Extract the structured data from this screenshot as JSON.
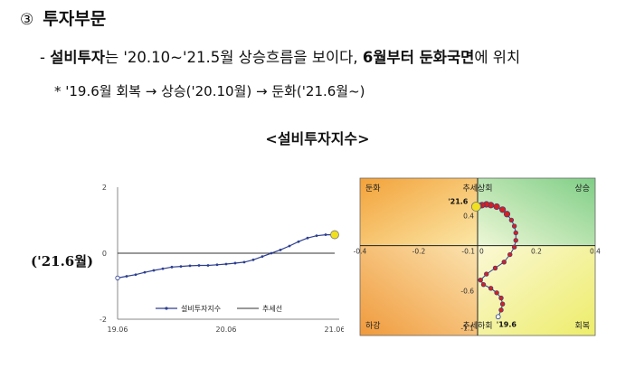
{
  "section": {
    "number": "③",
    "title": "투자부문"
  },
  "bullet1": {
    "dash": "-",
    "t1": "설비투자",
    "t2": "는 '20.10~'21.5월 상승흐름을 보이다, ",
    "t3": "6월부터 둔화국면",
    "t4": "에 위치"
  },
  "bullet2": {
    "text": "* '19.6월 회복 → 상승('20.10월) → 둔화('21.6월~)"
  },
  "figure": {
    "title": "<설비투자지수>",
    "side_label": "('21.6월)"
  },
  "chart_data": [
    {
      "type": "line",
      "x_ticks": [
        "19.06",
        "20.06",
        "21.06"
      ],
      "y_ticks": [
        "2",
        "0",
        "-2"
      ],
      "ylim": [
        -2,
        2
      ],
      "series": [
        {
          "name": "설비투자지수",
          "color": "#2d3f8f",
          "x": [
            0,
            1,
            2,
            3,
            4,
            5,
            6,
            7,
            8,
            9,
            10,
            11,
            12,
            13,
            14,
            15,
            16,
            17,
            18,
            19,
            20,
            21,
            22,
            23,
            24
          ],
          "values": [
            -0.75,
            -0.7,
            -0.65,
            -0.58,
            -0.52,
            -0.47,
            -0.42,
            -0.4,
            -0.38,
            -0.37,
            -0.37,
            -0.35,
            -0.33,
            -0.3,
            -0.27,
            -0.2,
            -0.1,
            0.0,
            0.1,
            0.22,
            0.35,
            0.46,
            0.53,
            0.56,
            0.56
          ]
        },
        {
          "name": "추세선",
          "color": "#333333",
          "x": [
            0,
            24
          ],
          "values": [
            0,
            0
          ]
        }
      ],
      "highlight": {
        "x": 24,
        "value": 0.56,
        "color": "#f0e020"
      }
    },
    {
      "type": "scatter",
      "x_ticks": [
        "-0.4",
        "-0.2",
        "-0.1",
        "0",
        "0.2",
        "0.4"
      ],
      "y_ticks": [
        "0.4",
        "-0.6",
        "-1.1"
      ],
      "xlim": [
        -0.4,
        0.4
      ],
      "ylim": [
        -1.2,
        0.9
      ],
      "quadrants": {
        "top_left": "둔화",
        "top_center": "추세상회",
        "top_right": "상승",
        "bottom_left": "하강",
        "bottom_center": "추세하회",
        "bottom_right": "회복"
      },
      "labels": {
        "start": "'19.6",
        "end": "'21.6"
      },
      "colors": {
        "dot": "#d42020",
        "path": "#2d3f8f",
        "end_marker": "#f0e020"
      },
      "points": [
        {
          "x": 0.07,
          "y": -0.95
        },
        {
          "x": 0.08,
          "y": -0.86
        },
        {
          "x": 0.085,
          "y": -0.78
        },
        {
          "x": 0.08,
          "y": -0.7
        },
        {
          "x": 0.065,
          "y": -0.63
        },
        {
          "x": 0.045,
          "y": -0.57
        },
        {
          "x": 0.02,
          "y": -0.52
        },
        {
          "x": 0.01,
          "y": -0.46
        },
        {
          "x": 0.03,
          "y": -0.38
        },
        {
          "x": 0.06,
          "y": -0.3
        },
        {
          "x": 0.09,
          "y": -0.22
        },
        {
          "x": 0.11,
          "y": -0.12
        },
        {
          "x": 0.125,
          "y": -0.02
        },
        {
          "x": 0.13,
          "y": 0.07
        },
        {
          "x": 0.13,
          "y": 0.17
        },
        {
          "x": 0.125,
          "y": 0.26
        },
        {
          "x": 0.115,
          "y": 0.34
        },
        {
          "x": 0.1,
          "y": 0.42
        },
        {
          "x": 0.085,
          "y": 0.48
        },
        {
          "x": 0.065,
          "y": 0.52
        },
        {
          "x": 0.045,
          "y": 0.54
        },
        {
          "x": 0.03,
          "y": 0.55
        },
        {
          "x": 0.015,
          "y": 0.54
        },
        {
          "x": 0.005,
          "y": 0.53
        },
        {
          "x": -0.005,
          "y": 0.52
        }
      ]
    }
  ]
}
